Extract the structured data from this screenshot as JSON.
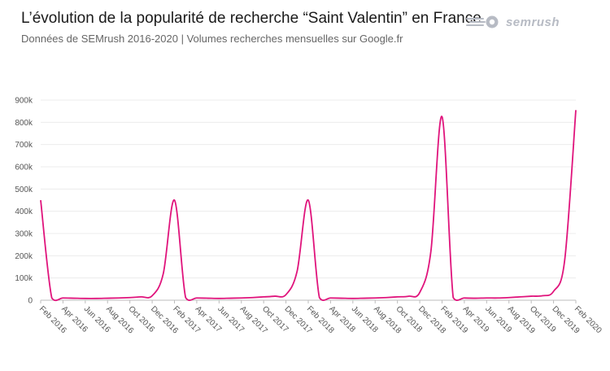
{
  "header": {
    "title": "L’évolution de la popularité de recherche “Saint Valentin” en France",
    "subtitle": "Données de SEMrush 2016-2020 | Volumes recherches mensuelles sur Google.fr"
  },
  "brand": {
    "name": "semrush",
    "icon": "semrush-fireball-icon",
    "color": "#b7bbc4"
  },
  "chart_data": {
    "type": "line",
    "title": "L’évolution de la popularité de recherche “Saint Valentin” en France",
    "subtitle": "Données de SEMrush 2016-2020 | Volumes recherches mensuelles sur Google.fr",
    "xlabel": "",
    "ylabel": "",
    "ylim": [
      0,
      900000
    ],
    "yticks": [
      0,
      100000,
      200000,
      300000,
      400000,
      500000,
      600000,
      700000,
      800000,
      900000
    ],
    "ytick_labels": [
      "0",
      "100k",
      "200k",
      "300k",
      "400k",
      "500k",
      "600k",
      "700k",
      "800k",
      "900k"
    ],
    "xtick_labels": [
      "Feb 2016",
      "Apr 2016",
      "Jun 2016",
      "Aug 2016",
      "Oct 2016",
      "Dec 2016",
      "Feb 2017",
      "Apr 2017",
      "Jun 2017",
      "Aug 2017",
      "Oct 2017",
      "Dec 2017",
      "Feb 2018",
      "Apr 2018",
      "Jun 2018",
      "Aug 2018",
      "Oct 2018",
      "Dec 2018",
      "Feb 2019",
      "Apr 2019",
      "Jun 2019",
      "Aug 2019",
      "Oct 2019",
      "Dec 2019",
      "Feb 2020"
    ],
    "grid": true,
    "color": "#e0147c",
    "series": [
      {
        "name": "",
        "x": [
          "2016-02",
          "2016-03",
          "2016-04",
          "2016-05",
          "2016-06",
          "2016-07",
          "2016-08",
          "2016-09",
          "2016-10",
          "2016-11",
          "2016-12",
          "2017-01",
          "2017-02",
          "2017-03",
          "2017-04",
          "2017-05",
          "2017-06",
          "2017-07",
          "2017-08",
          "2017-09",
          "2017-10",
          "2017-11",
          "2017-12",
          "2018-01",
          "2018-02",
          "2018-03",
          "2018-04",
          "2018-05",
          "2018-06",
          "2018-07",
          "2018-08",
          "2018-09",
          "2018-10",
          "2018-11",
          "2018-12",
          "2019-01",
          "2019-02",
          "2019-03",
          "2019-04",
          "2019-05",
          "2019-06",
          "2019-07",
          "2019-08",
          "2019-09",
          "2019-10",
          "2019-11",
          "2019-12",
          "2020-01",
          "2020-02"
        ],
        "values": [
          450000,
          10000,
          10000,
          9000,
          8000,
          8000,
          9000,
          10000,
          12000,
          15000,
          20000,
          120000,
          450000,
          12000,
          10000,
          9000,
          8000,
          9000,
          10000,
          12000,
          15000,
          18000,
          25000,
          130000,
          450000,
          12000,
          10000,
          9000,
          8000,
          9000,
          10000,
          12000,
          15000,
          18000,
          35000,
          220000,
          825000,
          12000,
          10000,
          9000,
          10000,
          10000,
          12000,
          15000,
          18000,
          20000,
          40000,
          180000,
          855000
        ]
      }
    ]
  }
}
